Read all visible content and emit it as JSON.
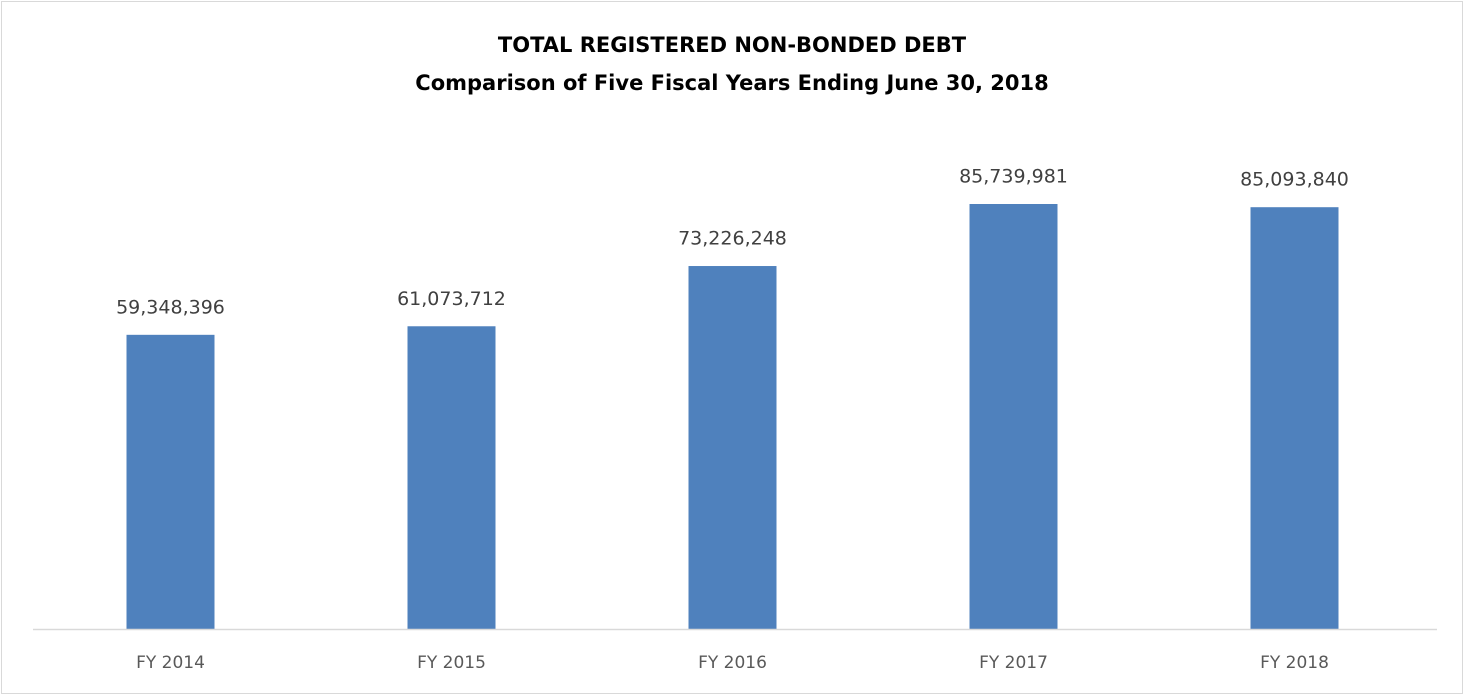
{
  "chart_data": {
    "type": "bar",
    "title": "TOTAL REGISTERED NON-BONDED DEBT",
    "subtitle": "Comparison of Five Fiscal Years Ending June 30, 2018",
    "categories": [
      "FY 2014",
      "FY 2015",
      "FY 2016",
      "FY 2017",
      "FY 2018"
    ],
    "values": [
      59348396,
      61073712,
      73226248,
      85739981,
      85093840
    ],
    "value_labels": [
      "59,348,396",
      "61,073,712",
      "73,226,248",
      "85,739,981",
      "85,093,840"
    ],
    "color": "#4f81bd"
  }
}
